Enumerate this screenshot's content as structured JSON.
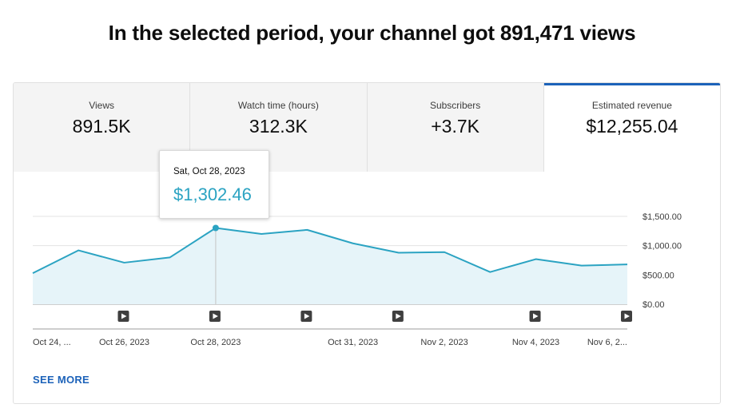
{
  "headline": "In the selected period, your channel got 891,471 views",
  "tabs": [
    {
      "label": "Views",
      "value": "891.5K"
    },
    {
      "label": "Watch time (hours)",
      "value": "312.3K"
    },
    {
      "label": "Subscribers",
      "value": "+3.7K"
    },
    {
      "label": "Estimated revenue",
      "value": "$12,255.04"
    }
  ],
  "tooltip": {
    "date": "Sat, Oct 28, 2023",
    "value": "$1,302.46"
  },
  "see_more": "SEE MORE",
  "colors": {
    "line": "#2ba3c2",
    "fill": "#e6f4f9",
    "accent": "#1c62b9"
  },
  "chart_data": {
    "type": "area",
    "title": "Estimated revenue",
    "x": [
      "Oct 24, 2023",
      "Oct 25, 2023",
      "Oct 26, 2023",
      "Oct 27, 2023",
      "Oct 28, 2023",
      "Oct 29, 2023",
      "Oct 30, 2023",
      "Oct 31, 2023",
      "Nov 1, 2023",
      "Nov 2, 2023",
      "Nov 3, 2023",
      "Nov 4, 2023",
      "Nov 5, 2023",
      "Nov 6, 2023"
    ],
    "values": [
      530,
      920,
      710,
      800,
      1302.46,
      1200,
      1270,
      1040,
      880,
      890,
      550,
      770,
      660,
      680
    ],
    "ylim": [
      0,
      1500
    ],
    "yticks": [
      0,
      500,
      1000,
      1500
    ],
    "ytick_labels": [
      "$0.00",
      "$500.00",
      "$1,000.00",
      "$1,500.00"
    ],
    "xtick_labels": [
      {
        "index": 0,
        "label": "Oct 24, ..."
      },
      {
        "index": 2,
        "label": "Oct 26, 2023"
      },
      {
        "index": 4,
        "label": "Oct 28, 2023"
      },
      {
        "index": 7,
        "label": "Oct 31, 2023"
      },
      {
        "index": 9,
        "label": "Nov 2, 2023"
      },
      {
        "index": 11,
        "label": "Nov 4, 2023"
      },
      {
        "index": 13,
        "label": "Nov 6, 2..."
      }
    ],
    "video_markers": [
      2,
      4,
      6,
      8,
      11,
      13
    ],
    "highlight_index": 4,
    "grid": true
  }
}
